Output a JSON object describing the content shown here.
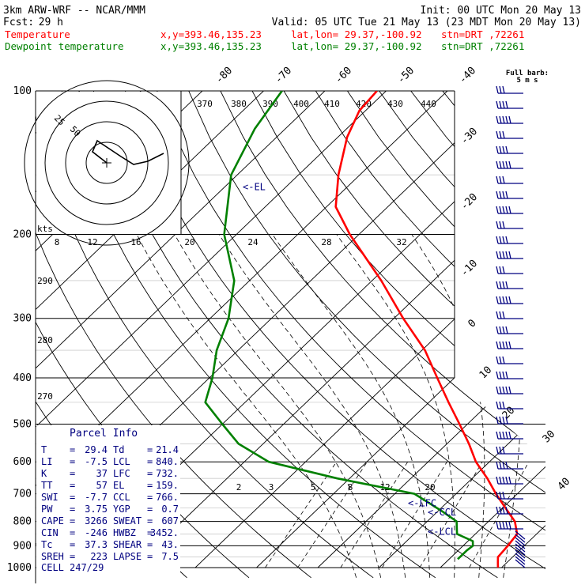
{
  "header": {
    "model": "3km ARW-WRF -- NCAR/MMM",
    "init": "Init: 00 UTC Mon 20 May 13",
    "fcst_label": "Fcst:",
    "fcst_value": "29 h",
    "valid": "Valid: 05 UTC Tue 21 May 13 (23 MDT Mon 20 May 13)",
    "temp_line": {
      "name": "Temperature",
      "xy": "x,y=393.46,135.23",
      "latlon": "lat,lon= 29.37,-100.92",
      "stn": "stn=DRT ,72261"
    },
    "dew_line": {
      "name": "Dewpoint temperature",
      "xy": "x,y=393.46,135.23",
      "latlon": "lat,lon= 29.37,-100.92",
      "stn": "stn=DRT ,72261"
    },
    "barb_note_1": "Full barb:",
    "barb_note_2": "5 m s"
  },
  "colors": {
    "temperature": "#ff0000",
    "dewpoint": "#008000",
    "axes": "#000000",
    "panel_text": "#000080",
    "barbs": "#000080"
  },
  "chart_data": {
    "type": "line",
    "title": "",
    "xlabel": "",
    "ylabel": "",
    "pressure_ticks": [
      "100",
      "200",
      "300",
      "400",
      "500",
      "600",
      "700",
      "800",
      "900",
      "1000"
    ],
    "temperature_ticks": [
      "-80",
      "-70",
      "-60",
      "-50",
      "-40",
      "-30",
      "-20",
      "-10",
      "0",
      "10",
      "20",
      "30",
      "40"
    ],
    "theta_labels": [
      "370",
      "380",
      "390",
      "400",
      "410",
      "420",
      "430",
      "440",
      "290",
      "280",
      "270"
    ],
    "mixing_ratio_labels": [
      "8",
      "12",
      "16",
      "20",
      "24",
      "28",
      "32",
      "2",
      "3",
      "5",
      "8",
      "12",
      "20"
    ],
    "series": [
      {
        "name": "Temperature",
        "points": [
          {
            "p": 1000,
            "t": 29.4
          },
          {
            "p": 975,
            "t": 28.5
          },
          {
            "p": 950,
            "t": 27.6
          },
          {
            "p": 900,
            "t": 27.3
          },
          {
            "p": 850,
            "t": 26.8
          },
          {
            "p": 800,
            "t": 24.3
          },
          {
            "p": 750,
            "t": 20.5
          },
          {
            "p": 700,
            "t": 16.5
          },
          {
            "p": 650,
            "t": 12.5
          },
          {
            "p": 600,
            "t": 7.8
          },
          {
            "p": 550,
            "t": 3.6
          },
          {
            "p": 500,
            "t": -1.3
          },
          {
            "p": 450,
            "t": -6.8
          },
          {
            "p": 400,
            "t": -12.8
          },
          {
            "p": 350,
            "t": -19.5
          },
          {
            "p": 300,
            "t": -28.5
          },
          {
            "p": 250,
            "t": -38.5
          },
          {
            "p": 200,
            "t": -51.5
          },
          {
            "p": 175,
            "t": -58.5
          },
          {
            "p": 150,
            "t": -63.5
          },
          {
            "p": 125,
            "t": -68.5
          },
          {
            "p": 110,
            "t": -71.0
          },
          {
            "p": 100,
            "t": -71.5
          }
        ]
      },
      {
        "name": "Dewpoint temperature",
        "points": [
          {
            "p": 960,
            "t": 21.4
          },
          {
            "p": 920,
            "t": 21.4
          },
          {
            "p": 900,
            "t": 21.6
          },
          {
            "p": 880,
            "t": 20.8
          },
          {
            "p": 850,
            "t": 17.0
          },
          {
            "p": 800,
            "t": 14.8
          },
          {
            "p": 760,
            "t": 10.5
          },
          {
            "p": 700,
            "t": 3.2
          },
          {
            "p": 650,
            "t": -12.0
          },
          {
            "p": 600,
            "t": -26.0
          },
          {
            "p": 550,
            "t": -34.0
          },
          {
            "p": 500,
            "t": -40.0
          },
          {
            "p": 450,
            "t": -46.5
          },
          {
            "p": 400,
            "t": -49.5
          },
          {
            "p": 350,
            "t": -53.5
          },
          {
            "p": 300,
            "t": -57.0
          },
          {
            "p": 250,
            "t": -62.5
          },
          {
            "p": 200,
            "t": -72.0
          },
          {
            "p": 150,
            "t": -81.0
          },
          {
            "p": 120,
            "t": -85.0
          },
          {
            "p": 100,
            "t": -87.0
          }
        ]
      }
    ],
    "levels": [
      {
        "label": "<-EL",
        "p": 159
      },
      {
        "label": "<-LFC",
        "p": 732
      },
      {
        "label": "<-CCL",
        "p": 766
      },
      {
        "label": "<-LCL",
        "p": 840
      }
    ],
    "hodograph": {
      "units_label": "kts",
      "ring_labels": [
        "25",
        "50"
      ],
      "points": [
        [
          0,
          0
        ],
        [
          -18,
          14
        ],
        [
          -12,
          28
        ],
        [
          18,
          8
        ],
        [
          34,
          -2
        ],
        [
          52,
          2
        ],
        [
          72,
          12
        ]
      ]
    }
  },
  "parcel_info": {
    "title": "Parcel Info",
    "rows": [
      {
        "k1": "T",
        "v1": "29.4",
        "k2": "Td",
        "v2": "21.4"
      },
      {
        "k1": "LI",
        "v1": "-7.5",
        "k2": "LCL",
        "v2": "840."
      },
      {
        "k1": "K",
        "v1": "37",
        "k2": "LFC",
        "v2": "732."
      },
      {
        "k1": "TT",
        "v1": "57",
        "k2": "EL",
        "v2": "159."
      },
      {
        "k1": "SWI",
        "v1": "-7.7",
        "k2": "CCL",
        "v2": "766."
      },
      {
        "k1": "PW",
        "v1": "3.75",
        "k2": "YGP",
        "v2": "0.7"
      },
      {
        "k1": "CAPE",
        "v1": "3266",
        "k2": "SWEAT",
        "v2": "607"
      },
      {
        "k1": "CIN",
        "v1": "-246",
        "k2": "HWBZ",
        "v2": "3452."
      },
      {
        "k1": "Tc",
        "v1": "37.3",
        "k2": "SHEAR",
        "v2": "43."
      },
      {
        "k1": "SREH",
        "v1": "223",
        "k2": "LAPSE",
        "v2": "7.5"
      }
    ],
    "cell_label": "CELL",
    "cell_value": "247/29"
  }
}
